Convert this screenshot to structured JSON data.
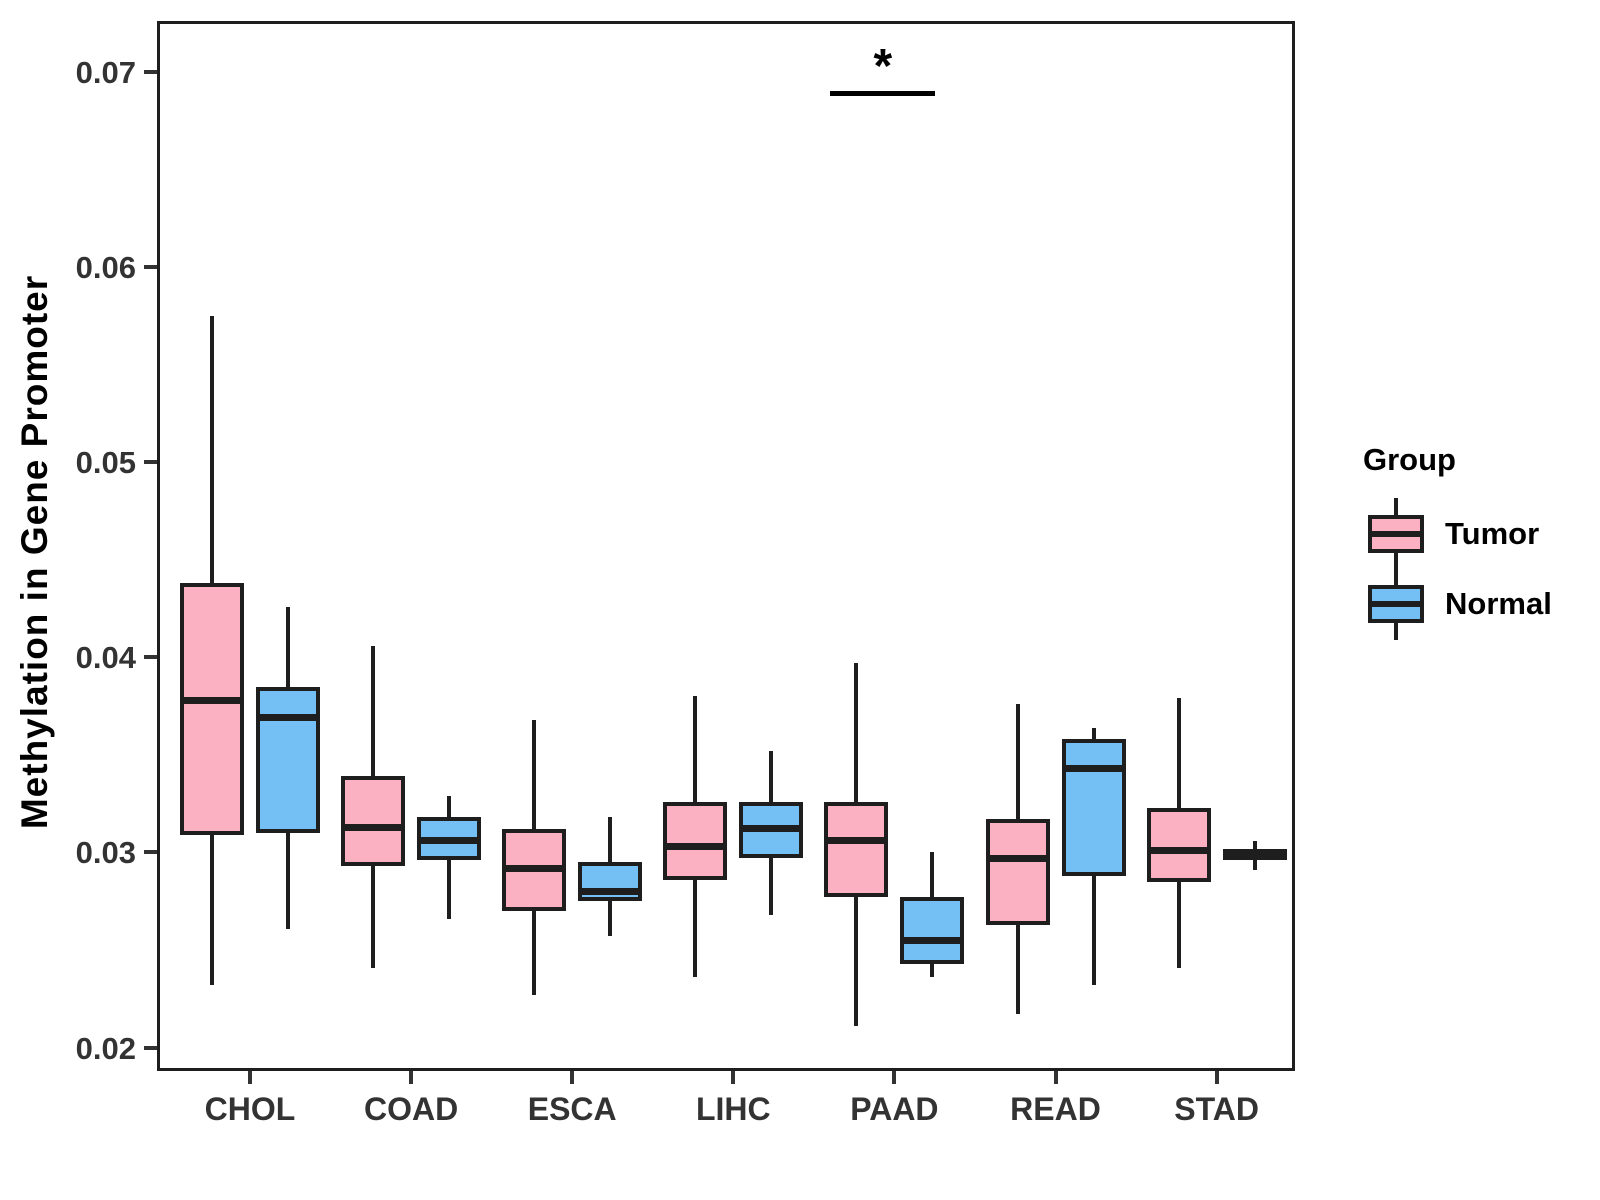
{
  "chart_data": {
    "type": "boxplot",
    "title": "",
    "xlabel": "",
    "ylabel": "Methylation in Gene Promoter",
    "categories": [
      "CHOL",
      "COAD",
      "ESCA",
      "LIHC",
      "PAAD",
      "READ",
      "STAD"
    ],
    "ylim": [
      0.0188,
      0.0726
    ],
    "yticks": [
      0.07,
      0.06,
      0.05,
      0.04,
      0.03,
      0.02
    ],
    "grid": false,
    "box_border_color": "#1e1e1e",
    "series": [
      {
        "name": "Tumor",
        "color": "#FBB1C1",
        "boxes": [
          {
            "low": 0.0232,
            "q1": 0.0309,
            "median": 0.0378,
            "q3": 0.0438,
            "high": 0.0575
          },
          {
            "low": 0.0241,
            "q1": 0.0293,
            "median": 0.0313,
            "q3": 0.0339,
            "high": 0.0406
          },
          {
            "low": 0.0227,
            "q1": 0.027,
            "median": 0.0292,
            "q3": 0.0312,
            "high": 0.0368
          },
          {
            "low": 0.0236,
            "q1": 0.0286,
            "median": 0.0303,
            "q3": 0.0326,
            "high": 0.038
          },
          {
            "low": 0.0211,
            "q1": 0.0277,
            "median": 0.0306,
            "q3": 0.0326,
            "high": 0.0397
          },
          {
            "low": 0.0217,
            "q1": 0.0263,
            "median": 0.0297,
            "q3": 0.0317,
            "high": 0.0376
          },
          {
            "low": 0.0241,
            "q1": 0.0285,
            "median": 0.0301,
            "q3": 0.0323,
            "high": 0.0379
          }
        ]
      },
      {
        "name": "Normal",
        "color": "#74BFF4",
        "boxes": [
          {
            "low": 0.0261,
            "q1": 0.031,
            "median": 0.0369,
            "q3": 0.0385,
            "high": 0.0426
          },
          {
            "low": 0.0266,
            "q1": 0.0296,
            "median": 0.0306,
            "q3": 0.0318,
            "high": 0.0329
          },
          {
            "low": 0.0257,
            "q1": 0.0275,
            "median": 0.028,
            "q3": 0.0295,
            "high": 0.0318
          },
          {
            "low": 0.0268,
            "q1": 0.0297,
            "median": 0.0312,
            "q3": 0.0326,
            "high": 0.0352
          },
          {
            "low": 0.0236,
            "q1": 0.0243,
            "median": 0.0255,
            "q3": 0.0277,
            "high": 0.03
          },
          {
            "low": 0.0232,
            "q1": 0.0288,
            "median": 0.0343,
            "q3": 0.0358,
            "high": 0.0364
          },
          {
            "low": 0.0291,
            "q1": 0.0296,
            "median": 0.0299,
            "q3": 0.0302,
            "high": 0.0306
          }
        ]
      }
    ],
    "legend": {
      "title": "Group",
      "position": "right"
    },
    "significance": {
      "group": "PAAD",
      "label": "*",
      "y_value": 0.069
    }
  }
}
